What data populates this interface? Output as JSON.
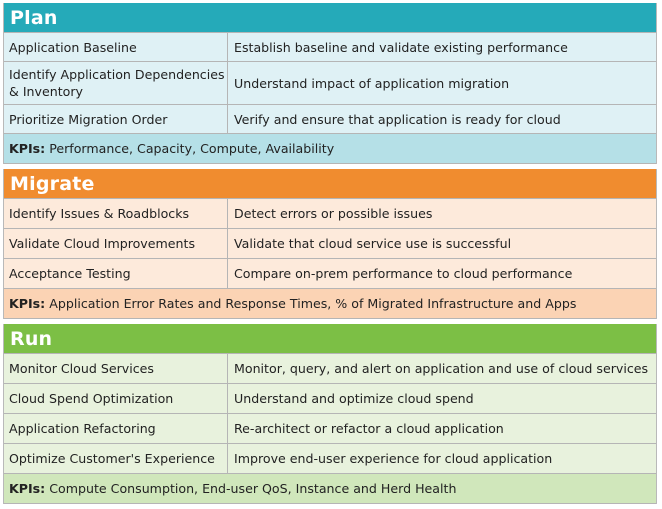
{
  "sections": [
    {
      "title": "Plan",
      "colors": {
        "header": "#25aab9",
        "row": "#dff1f5",
        "kpi": "#b5e0e7"
      },
      "rows": [
        {
          "task": "Application Baseline",
          "desc": "Establish baseline and validate existing performance"
        },
        {
          "task": "Identify Application Dependencies & Inventory",
          "desc": "Understand impact of application migration"
        },
        {
          "task": "Prioritize Migration Order",
          "desc": "Verify and ensure that application is ready for cloud"
        }
      ],
      "kpi_label": "KPIs:",
      "kpi_text": " Performance, Capacity, Compute, Availability"
    },
    {
      "title": "Migrate",
      "colors": {
        "header": "#f08c2f",
        "row": "#fdeadb",
        "kpi": "#fbd3b4"
      },
      "rows": [
        {
          "task": "Identify Issues & Roadblocks",
          "desc": "Detect errors or possible issues"
        },
        {
          "task": "Validate Cloud Improvements",
          "desc": "Validate that cloud service use is successful"
        },
        {
          "task": "Acceptance Testing",
          "desc": "Compare on-prem performance to cloud performance"
        }
      ],
      "kpi_label": "KPIs:",
      "kpi_text": " Application Error Rates and Response Times, % of Migrated Infrastructure and Apps"
    },
    {
      "title": "Run",
      "colors": {
        "header": "#7cbf45",
        "row": "#e8f2dd",
        "kpi": "#d0e7bb"
      },
      "rows": [
        {
          "task": "Monitor Cloud Services",
          "desc": "Monitor, query, and alert on application and use of cloud services"
        },
        {
          "task": "Cloud Spend Optimization",
          "desc": "Understand and optimize cloud spend"
        },
        {
          "task": "Application Refactoring",
          "desc": "Re-architect or refactor a cloud application"
        },
        {
          "task": "Optimize Customer's Experience",
          "desc": "Improve end-user experience for cloud application"
        }
      ],
      "kpi_label": "KPIs:",
      "kpi_text": " Compute Consumption, End-user QoS, Instance and Herd Health"
    }
  ]
}
